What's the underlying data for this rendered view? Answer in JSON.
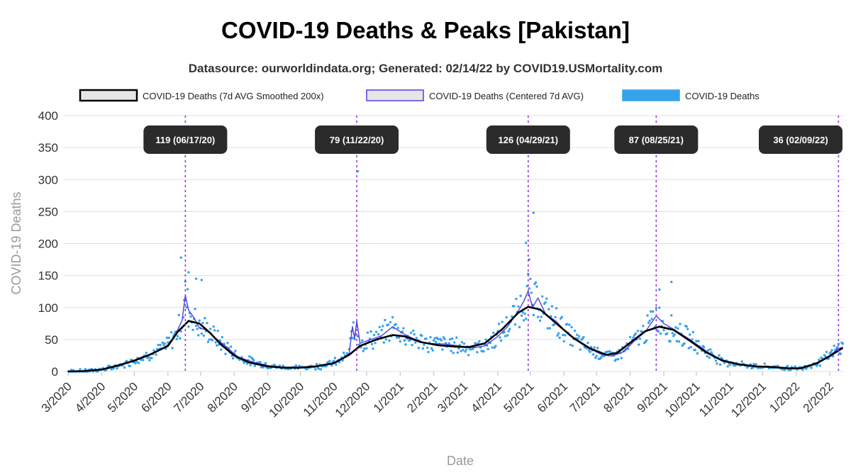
{
  "chart_data": {
    "type": "line",
    "title": "COVID-19 Deaths & Peaks [Pakistan]",
    "subtitle": "Datasource: ourworldindata.org; Generated: 02/14/22 by COVID19.USMortality.com",
    "xlabel": "Date",
    "ylabel": "COVID-19 Deaths",
    "ylim": [
      0,
      400
    ],
    "yticks": [
      0,
      50,
      100,
      150,
      200,
      250,
      300,
      350,
      400
    ],
    "xlim": [
      "2020-02-26",
      "2022-02-14"
    ],
    "xticks": [
      {
        "date": "2020-03-01",
        "label": "3/2020"
      },
      {
        "date": "2020-04-01",
        "label": "4/2020"
      },
      {
        "date": "2020-05-01",
        "label": "5/2020"
      },
      {
        "date": "2020-06-01",
        "label": "6/2020"
      },
      {
        "date": "2020-07-01",
        "label": "7/2020"
      },
      {
        "date": "2020-08-01",
        "label": "8/2020"
      },
      {
        "date": "2020-09-01",
        "label": "9/2020"
      },
      {
        "date": "2020-10-01",
        "label": "10/2020"
      },
      {
        "date": "2020-11-01",
        "label": "11/2020"
      },
      {
        "date": "2020-12-01",
        "label": "12/2020"
      },
      {
        "date": "2021-01-01",
        "label": "1/2021"
      },
      {
        "date": "2021-02-01",
        "label": "2/2021"
      },
      {
        "date": "2021-03-01",
        "label": "3/2021"
      },
      {
        "date": "2021-04-01",
        "label": "4/2021"
      },
      {
        "date": "2021-05-01",
        "label": "5/2021"
      },
      {
        "date": "2021-06-01",
        "label": "6/2021"
      },
      {
        "date": "2021-07-01",
        "label": "7/2021"
      },
      {
        "date": "2021-08-01",
        "label": "8/2021"
      },
      {
        "date": "2021-09-01",
        "label": "9/2021"
      },
      {
        "date": "2021-10-01",
        "label": "10/2021"
      },
      {
        "date": "2021-11-01",
        "label": "11/2021"
      },
      {
        "date": "2021-12-01",
        "label": "12/2021"
      },
      {
        "date": "2022-01-01",
        "label": "1/2022"
      },
      {
        "date": "2022-02-01",
        "label": "2/2022"
      }
    ],
    "grid": true,
    "legend_position": "top",
    "legend": [
      {
        "name": "COVID-19 Deaths (7d AVG Smoothed 200x)",
        "color": "#000000",
        "fill": "#e6e6e6"
      },
      {
        "name": "COVID-19 Deaths (Centered 7d AVG)",
        "color": "#4a40e0",
        "fill": "#e6e6e6"
      },
      {
        "name": "COVID-19 Deaths",
        "color": "#36a2eb",
        "fill": "#36a2eb"
      }
    ],
    "series": [
      {
        "name": "COVID-19 Deaths (7d AVG Smoothed 200x)",
        "color": "#000000",
        "points": [
          [
            "2020-03-01",
            0
          ],
          [
            "2020-03-15",
            0.5
          ],
          [
            "2020-04-01",
            3
          ],
          [
            "2020-04-15",
            9
          ],
          [
            "2020-05-01",
            17
          ],
          [
            "2020-05-15",
            26
          ],
          [
            "2020-06-01",
            40
          ],
          [
            "2020-06-10",
            62
          ],
          [
            "2020-06-20",
            79
          ],
          [
            "2020-06-30",
            75
          ],
          [
            "2020-07-10",
            60
          ],
          [
            "2020-07-20",
            42
          ],
          [
            "2020-08-01",
            25
          ],
          [
            "2020-08-15",
            14
          ],
          [
            "2020-09-01",
            8
          ],
          [
            "2020-09-15",
            6
          ],
          [
            "2020-10-01",
            6
          ],
          [
            "2020-10-15",
            8
          ],
          [
            "2020-11-01",
            13
          ],
          [
            "2020-11-15",
            26
          ],
          [
            "2020-11-25",
            40
          ],
          [
            "2020-12-10",
            50
          ],
          [
            "2020-12-25",
            57
          ],
          [
            "2021-01-05",
            55
          ],
          [
            "2021-01-20",
            46
          ],
          [
            "2021-02-05",
            41
          ],
          [
            "2021-02-20",
            39
          ],
          [
            "2021-03-05",
            38
          ],
          [
            "2021-03-20",
            44
          ],
          [
            "2021-04-05",
            66
          ],
          [
            "2021-04-20",
            92
          ],
          [
            "2021-04-29",
            101
          ],
          [
            "2021-05-10",
            97
          ],
          [
            "2021-05-25",
            75
          ],
          [
            "2021-06-10",
            52
          ],
          [
            "2021-06-25",
            36
          ],
          [
            "2021-07-10",
            26
          ],
          [
            "2021-07-20",
            29
          ],
          [
            "2021-08-01",
            45
          ],
          [
            "2021-08-15",
            63
          ],
          [
            "2021-08-28",
            70
          ],
          [
            "2021-09-10",
            65
          ],
          [
            "2021-09-25",
            48
          ],
          [
            "2021-10-10",
            30
          ],
          [
            "2021-10-25",
            17
          ],
          [
            "2021-11-10",
            11
          ],
          [
            "2021-11-25",
            8
          ],
          [
            "2021-12-10",
            7
          ],
          [
            "2021-12-25",
            5
          ],
          [
            "2022-01-05",
            5
          ],
          [
            "2022-01-20",
            13
          ],
          [
            "2022-02-01",
            24
          ],
          [
            "2022-02-13",
            37
          ]
        ]
      },
      {
        "name": "COVID-19 Deaths (Centered 7d AVG)",
        "color": "#4a40e0",
        "points": [
          [
            "2020-03-01",
            0
          ],
          [
            "2020-03-20",
            1
          ],
          [
            "2020-04-05",
            4
          ],
          [
            "2020-04-20",
            10
          ],
          [
            "2020-05-01",
            18
          ],
          [
            "2020-05-15",
            27
          ],
          [
            "2020-05-25",
            34
          ],
          [
            "2020-06-01",
            42
          ],
          [
            "2020-06-08",
            58
          ],
          [
            "2020-06-14",
            80
          ],
          [
            "2020-06-17",
            119
          ],
          [
            "2020-06-20",
            96
          ],
          [
            "2020-06-25",
            84
          ],
          [
            "2020-06-30",
            68
          ],
          [
            "2020-07-08",
            64
          ],
          [
            "2020-07-15",
            52
          ],
          [
            "2020-07-25",
            38
          ],
          [
            "2020-08-05",
            22
          ],
          [
            "2020-08-20",
            14
          ],
          [
            "2020-09-05",
            8
          ],
          [
            "2020-09-20",
            6
          ],
          [
            "2020-10-05",
            6
          ],
          [
            "2020-10-20",
            9
          ],
          [
            "2020-11-05",
            16
          ],
          [
            "2020-11-15",
            28
          ],
          [
            "2020-11-18",
            70
          ],
          [
            "2020-11-20",
            52
          ],
          [
            "2020-11-22",
            79
          ],
          [
            "2020-11-25",
            44
          ],
          [
            "2020-12-05",
            50
          ],
          [
            "2020-12-15",
            56
          ],
          [
            "2020-12-25",
            70
          ],
          [
            "2021-01-05",
            58
          ],
          [
            "2021-01-15",
            50
          ],
          [
            "2021-01-25",
            44
          ],
          [
            "2021-02-10",
            43
          ],
          [
            "2021-02-25",
            40
          ],
          [
            "2021-03-10",
            37
          ],
          [
            "2021-03-20",
            40
          ],
          [
            "2021-04-01",
            55
          ],
          [
            "2021-04-10",
            70
          ],
          [
            "2021-04-20",
            95
          ],
          [
            "2021-04-25",
            110
          ],
          [
            "2021-04-29",
            126
          ],
          [
            "2021-05-03",
            100
          ],
          [
            "2021-05-08",
            115
          ],
          [
            "2021-05-15",
            90
          ],
          [
            "2021-05-25",
            78
          ],
          [
            "2021-06-05",
            58
          ],
          [
            "2021-06-20",
            40
          ],
          [
            "2021-07-05",
            27
          ],
          [
            "2021-07-15",
            24
          ],
          [
            "2021-07-25",
            30
          ],
          [
            "2021-08-05",
            48
          ],
          [
            "2021-08-15",
            62
          ],
          [
            "2021-08-25",
            87
          ],
          [
            "2021-09-01",
            75
          ],
          [
            "2021-09-10",
            66
          ],
          [
            "2021-09-25",
            50
          ],
          [
            "2021-10-10",
            32
          ],
          [
            "2021-10-25",
            16
          ],
          [
            "2021-11-10",
            11
          ],
          [
            "2021-11-25",
            8
          ],
          [
            "2021-12-10",
            7
          ],
          [
            "2021-12-25",
            5
          ],
          [
            "2022-01-05",
            5
          ],
          [
            "2022-01-20",
            13
          ],
          [
            "2022-02-01",
            25
          ],
          [
            "2022-02-09",
            36
          ],
          [
            "2022-02-13",
            38
          ]
        ]
      }
    ],
    "scatter": {
      "name": "COVID-19 Deaths",
      "color": "#36a2eb",
      "outliers": [
        [
          "2020-06-13",
          178
        ],
        [
          "2020-06-20",
          155
        ],
        [
          "2020-06-27",
          145
        ],
        [
          "2020-07-02",
          143
        ],
        [
          "2020-11-23",
          313
        ],
        [
          "2021-04-27",
          201
        ],
        [
          "2021-05-04",
          248
        ],
        [
          "2021-04-30",
          175
        ],
        [
          "2021-08-28",
          128
        ],
        [
          "2021-09-08",
          140
        ]
      ]
    },
    "peaks": [
      {
        "date": "2020-06-17",
        "label": "119 (06/17/20)"
      },
      {
        "date": "2020-11-22",
        "label": "79 (11/22/20)"
      },
      {
        "date": "2021-04-29",
        "label": "126 (04/29/21)"
      },
      {
        "date": "2021-08-25",
        "label": "87 (08/25/21)"
      },
      {
        "date": "2022-02-09",
        "label": "36 (02/09/22)"
      }
    ],
    "peak_line_color": "#9b30e0"
  }
}
